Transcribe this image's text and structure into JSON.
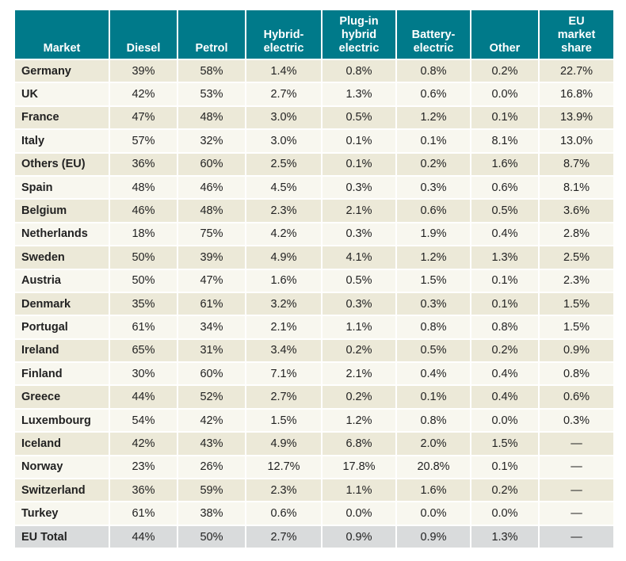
{
  "table": {
    "headers": [
      [
        "Market"
      ],
      [
        "Diesel"
      ],
      [
        "Petrol"
      ],
      [
        "Hybrid-",
        "electric"
      ],
      [
        "Plug-in",
        "hybrid",
        "electric"
      ],
      [
        "Battery-",
        "electric"
      ],
      [
        "Other"
      ],
      [
        "EU",
        "market",
        "share"
      ]
    ],
    "rows": [
      [
        "Germany",
        "39%",
        "58%",
        "1.4%",
        "0.8%",
        "0.8%",
        "0.2%",
        "22.7%"
      ],
      [
        "UK",
        "42%",
        "53%",
        "2.7%",
        "1.3%",
        "0.6%",
        "0.0%",
        "16.8%"
      ],
      [
        "France",
        "47%",
        "48%",
        "3.0%",
        "0.5%",
        "1.2%",
        "0.1%",
        "13.9%"
      ],
      [
        "Italy",
        "57%",
        "32%",
        "3.0%",
        "0.1%",
        "0.1%",
        "8.1%",
        "13.0%"
      ],
      [
        "Others (EU)",
        "36%",
        "60%",
        "2.5%",
        "0.1%",
        "0.2%",
        "1.6%",
        "8.7%"
      ],
      [
        "Spain",
        "48%",
        "46%",
        "4.5%",
        "0.3%",
        "0.3%",
        "0.6%",
        "8.1%"
      ],
      [
        "Belgium",
        "46%",
        "48%",
        "2.3%",
        "2.1%",
        "0.6%",
        "0.5%",
        "3.6%"
      ],
      [
        "Netherlands",
        "18%",
        "75%",
        "4.2%",
        "0.3%",
        "1.9%",
        "0.4%",
        "2.8%"
      ],
      [
        "Sweden",
        "50%",
        "39%",
        "4.9%",
        "4.1%",
        "1.2%",
        "1.3%",
        "2.5%"
      ],
      [
        "Austria",
        "50%",
        "47%",
        "1.6%",
        "0.5%",
        "1.5%",
        "0.1%",
        "2.3%"
      ],
      [
        "Denmark",
        "35%",
        "61%",
        "3.2%",
        "0.3%",
        "0.3%",
        "0.1%",
        "1.5%"
      ],
      [
        "Portugal",
        "61%",
        "34%",
        "2.1%",
        "1.1%",
        "0.8%",
        "0.8%",
        "1.5%"
      ],
      [
        "Ireland",
        "65%",
        "31%",
        "3.4%",
        "0.2%",
        "0.5%",
        "0.2%",
        "0.9%"
      ],
      [
        "Finland",
        "30%",
        "60%",
        "7.1%",
        "2.1%",
        "0.4%",
        "0.4%",
        "0.8%"
      ],
      [
        "Greece",
        "44%",
        "52%",
        "2.7%",
        "0.2%",
        "0.1%",
        "0.4%",
        "0.6%"
      ],
      [
        "Luxembourg",
        "54%",
        "42%",
        "1.5%",
        "1.2%",
        "0.8%",
        "0.0%",
        "0.3%"
      ],
      [
        "Iceland",
        "42%",
        "43%",
        "4.9%",
        "6.8%",
        "2.0%",
        "1.5%",
        "—"
      ],
      [
        "Norway",
        "23%",
        "26%",
        "12.7%",
        "17.8%",
        "20.8%",
        "0.1%",
        "—"
      ],
      [
        "Switzerland",
        "36%",
        "59%",
        "2.3%",
        "1.1%",
        "1.6%",
        "0.2%",
        "—"
      ],
      [
        "Turkey",
        "61%",
        "38%",
        "0.6%",
        "0.0%",
        "0.0%",
        "0.0%",
        "—"
      ]
    ],
    "total": [
      "EU Total",
      "44%",
      "50%",
      "2.7%",
      "0.9%",
      "0.9%",
      "1.3%",
      "—"
    ]
  }
}
